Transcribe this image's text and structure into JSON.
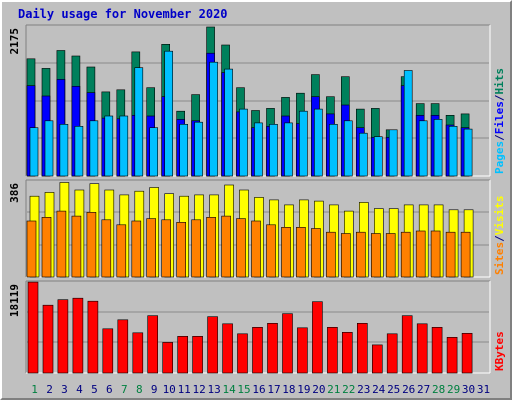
{
  "title": "Daily usage for November 2020",
  "colors": {
    "background": "#c0c0c0",
    "plot_bg": "#c0c0c0",
    "grid": "#8a8a8a",
    "hits": "#00805c",
    "files": "#0000ff",
    "pages": "#00c0ff",
    "visits": "#ffff00",
    "sites": "#ff8000",
    "kbytes": "#ff0000",
    "weekday_label": "#000080",
    "weekend_label": "#008040"
  },
  "chart_data": [
    {
      "type": "bar",
      "panel": "hits-files-pages",
      "ymax_label": "2175",
      "ylim": [
        0,
        2175
      ],
      "categories": [
        "1",
        "2",
        "3",
        "4",
        "5",
        "6",
        "7",
        "8",
        "9",
        "10",
        "11",
        "12",
        "13",
        "14",
        "15",
        "16",
        "17",
        "18",
        "19",
        "20",
        "21",
        "22",
        "23",
        "24",
        "25",
        "26",
        "27",
        "28",
        "29",
        "30",
        "31"
      ],
      "weekend_days": [
        1,
        7,
        8,
        14,
        15,
        21,
        22,
        28,
        29
      ],
      "legend_right": [
        {
          "text": "Hits",
          "color_key": "hits"
        },
        {
          "text": "/",
          "color_key": "weekday_label"
        },
        {
          "text": "Files",
          "color_key": "files"
        },
        {
          "text": "/",
          "color_key": "weekday_label"
        },
        {
          "text": "Pages",
          "color_key": "pages"
        }
      ],
      "series": [
        {
          "name": "Hits",
          "values": [
            1700,
            1560,
            1820,
            1740,
            1580,
            1220,
            1250,
            1800,
            1280,
            1910,
            940,
            1180,
            2160,
            1900,
            1280,
            950,
            980,
            1140,
            1200,
            1470,
            1150,
            1440,
            970,
            980,
            670,
            1440,
            1050,
            1050,
            880,
            900,
            0
          ]
        },
        {
          "name": "Files",
          "values": [
            1310,
            1160,
            1400,
            1300,
            1210,
            840,
            830,
            880,
            870,
            1150,
            820,
            800,
            1780,
            1500,
            930,
            700,
            720,
            870,
            760,
            1150,
            900,
            1030,
            700,
            560,
            560,
            1310,
            880,
            880,
            740,
            700,
            0
          ]
        },
        {
          "name": "Pages",
          "values": [
            700,
            800,
            750,
            720,
            800,
            870,
            870,
            1570,
            700,
            1810,
            750,
            780,
            1650,
            1550,
            970,
            770,
            750,
            770,
            940,
            970,
            750,
            800,
            620,
            570,
            670,
            1530,
            800,
            820,
            720,
            680,
            0
          ]
        }
      ]
    },
    {
      "type": "bar",
      "panel": "visits-sites",
      "ymax_label": "386",
      "ylim": [
        0,
        386
      ],
      "categories": [
        "1",
        "2",
        "3",
        "4",
        "5",
        "6",
        "7",
        "8",
        "9",
        "10",
        "11",
        "12",
        "13",
        "14",
        "15",
        "16",
        "17",
        "18",
        "19",
        "20",
        "21",
        "22",
        "23",
        "24",
        "25",
        "26",
        "27",
        "28",
        "29",
        "30",
        "31"
      ],
      "legend_right": [
        {
          "text": "Visits",
          "color_key": "visits"
        },
        {
          "text": "/",
          "color_key": "weekday_label"
        },
        {
          "text": "Sites",
          "color_key": "sites"
        }
      ],
      "series": [
        {
          "name": "Visits",
          "values": [
            325,
            340,
            380,
            350,
            375,
            350,
            330,
            345,
            360,
            335,
            325,
            330,
            330,
            370,
            350,
            320,
            310,
            290,
            310,
            305,
            290,
            265,
            300,
            275,
            275,
            290,
            290,
            290,
            270,
            270,
            0
          ]
        },
        {
          "name": "Sites",
          "values": [
            225,
            240,
            265,
            245,
            260,
            230,
            210,
            225,
            235,
            230,
            220,
            230,
            240,
            245,
            235,
            225,
            210,
            200,
            200,
            195,
            180,
            175,
            180,
            175,
            175,
            180,
            185,
            185,
            180,
            180,
            0
          ]
        }
      ]
    },
    {
      "type": "bar",
      "panel": "kbytes",
      "ymax_label": "18119",
      "ylim": [
        0,
        18119
      ],
      "categories": [
        "1",
        "2",
        "3",
        "4",
        "5",
        "6",
        "7",
        "8",
        "9",
        "10",
        "11",
        "12",
        "13",
        "14",
        "15",
        "16",
        "17",
        "18",
        "19",
        "20",
        "21",
        "22",
        "23",
        "24",
        "25",
        "26",
        "27",
        "28",
        "29",
        "30",
        "31"
      ],
      "legend_right": [
        {
          "text": "KBytes",
          "color_key": "kbytes"
        }
      ],
      "series": [
        {
          "name": "KBytes",
          "values": [
            18100,
            13500,
            14600,
            14900,
            14300,
            8800,
            10600,
            8000,
            11400,
            6100,
            7300,
            7300,
            11200,
            9800,
            7800,
            9100,
            9900,
            11800,
            9000,
            14200,
            9100,
            8100,
            9900,
            5600,
            7800,
            11400,
            9800,
            9100,
            7100,
            7900,
            0
          ]
        }
      ]
    }
  ]
}
